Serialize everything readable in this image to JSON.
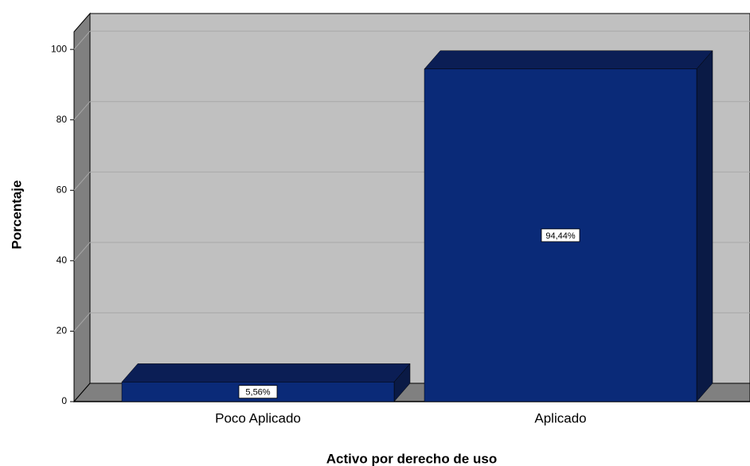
{
  "chart_data": {
    "type": "bar3d",
    "x_label": "Activo por derecho de uso",
    "y_label": "Porcentaje",
    "categories": [
      "Poco Aplicado",
      "Aplicado"
    ],
    "values": [
      5.56,
      94.44
    ],
    "value_labels": [
      "5,56%",
      "94,44%"
    ],
    "color": "#0a2a78",
    "ylim": [
      0,
      105
    ],
    "yticks": [
      0,
      20,
      40,
      60,
      80,
      100
    ],
    "grid": true
  }
}
